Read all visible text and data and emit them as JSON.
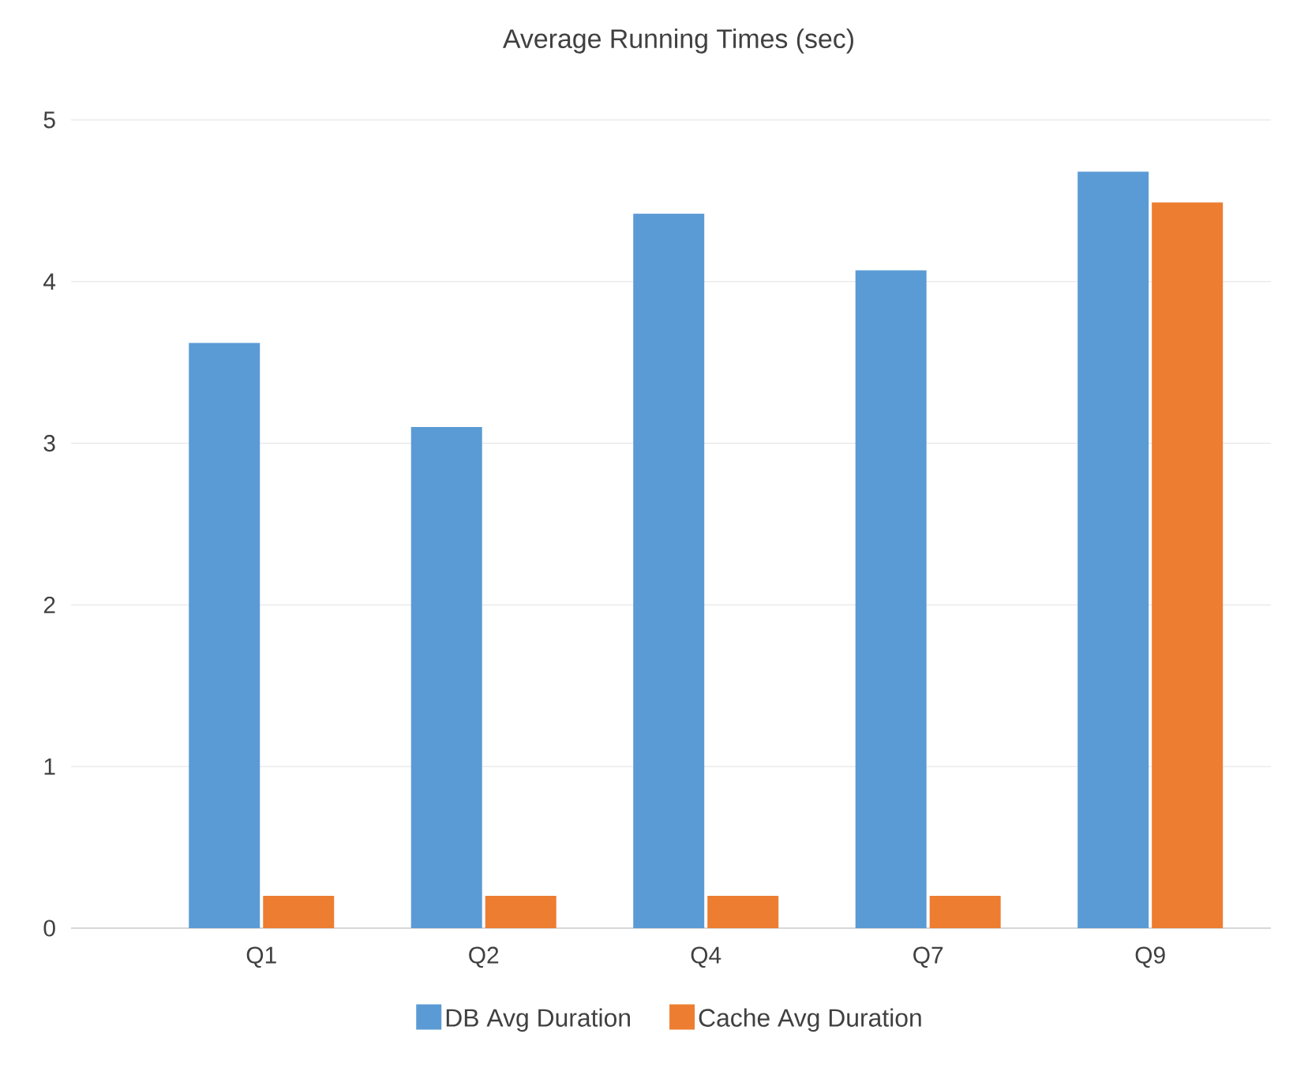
{
  "chart_data": {
    "type": "bar",
    "title": "Average Running Times (sec)",
    "categories": [
      "Q1",
      "Q2",
      "Q4",
      "Q7",
      "Q9"
    ],
    "series": [
      {
        "name": "DB Avg Duration",
        "color": "#5b9bd5",
        "values": [
          3.62,
          3.1,
          4.42,
          4.07,
          4.68
        ]
      },
      {
        "name": "Cache Avg Duration",
        "color": "#ed7d31",
        "values": [
          0.2,
          0.2,
          0.2,
          0.2,
          4.49
        ]
      }
    ],
    "ylim": [
      0,
      5
    ],
    "yticks": [
      0,
      1,
      2,
      3,
      4,
      5
    ],
    "grid": "y",
    "legend": "bottom"
  }
}
